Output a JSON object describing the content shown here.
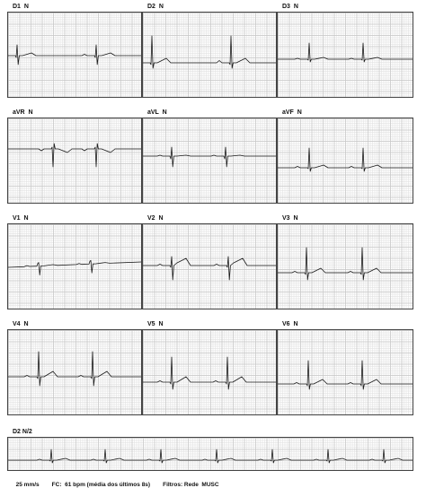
{
  "leads": [
    {
      "id": "D1",
      "label": "D1  N"
    },
    {
      "id": "D2",
      "label": "D2  N"
    },
    {
      "id": "D3",
      "label": "D3  N"
    },
    {
      "id": "aVR",
      "label": "aVR  N"
    },
    {
      "id": "aVL",
      "label": "aVL  N"
    },
    {
      "id": "aVF",
      "label": "aVF  N"
    },
    {
      "id": "V1",
      "label": "V1  N"
    },
    {
      "id": "V2",
      "label": "V2  N"
    },
    {
      "id": "V3",
      "label": "V3  N"
    },
    {
      "id": "V4",
      "label": "V4  N"
    },
    {
      "id": "V5",
      "label": "V5  N"
    },
    {
      "id": "V6",
      "label": "V6  N"
    }
  ],
  "rhythm_strip": {
    "label": "D2 N/2"
  },
  "footer": {
    "speed": "25 mm/s",
    "heart_rate": "FC:  61 bpm (média dos últimos 8s)",
    "filters": "Filtros: Rede  MUSC"
  },
  "colors": {
    "grid_major": "#c8c8c8",
    "grid_minor": "#e1e1e1",
    "trace": "#1a1a1a",
    "panel_border": "#444444"
  }
}
